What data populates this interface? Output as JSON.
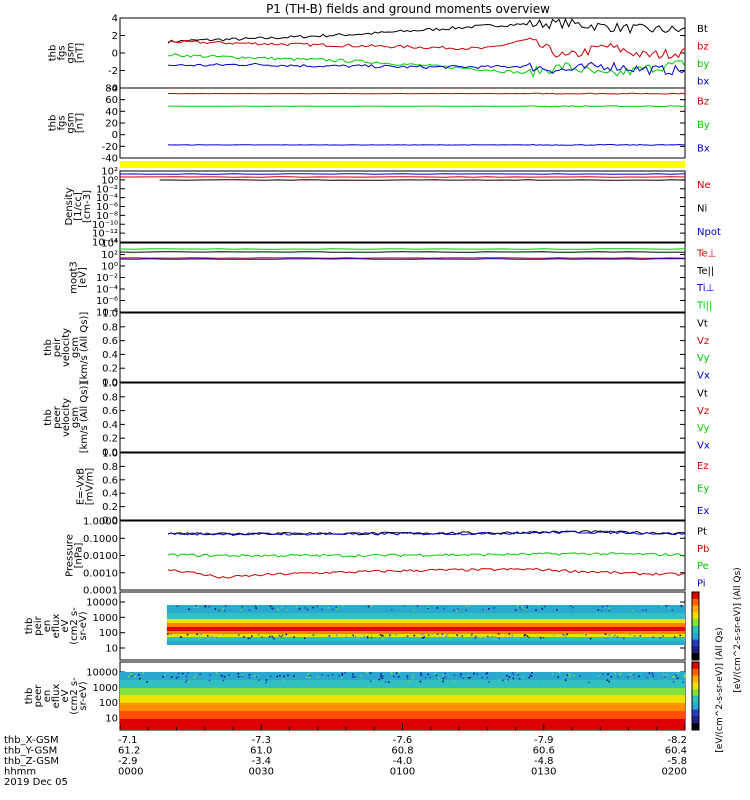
{
  "title": "P1 (TH-B) fields and ground moments overview",
  "chart_data": [
    {
      "type": "line",
      "ylabel": [
        "thb",
        "fgs",
        "gsm",
        "[nT]"
      ],
      "ylim": [
        -4,
        4
      ],
      "yticks": [
        4,
        2,
        0,
        -2,
        -4
      ],
      "series": [
        {
          "name": "Bt",
          "color": "#000000",
          "values": [
            1.3,
            1.5,
            1.6,
            1.8,
            2.0,
            2.2,
            2.5,
            2.8,
            3.1,
            3.3,
            3.4,
            3.0,
            2.7,
            2.6
          ]
        },
        {
          "name": "bz",
          "color": "#cc0000",
          "values": [
            1.3,
            1.2,
            1.1,
            1.0,
            0.9,
            0.8,
            0.7,
            0.6,
            0.5,
            1.5,
            -0.5,
            0.8,
            -0.3,
            0.1
          ]
        },
        {
          "name": "by",
          "color": "#00cc00",
          "values": [
            -0.2,
            -0.4,
            -0.5,
            -0.7,
            -0.8,
            -1.0,
            -1.3,
            -1.6,
            -1.9,
            -2.3,
            -1.5,
            -2.6,
            -1.8,
            -1.2
          ]
        },
        {
          "name": "bx",
          "color": "#0000cc",
          "values": [
            -1.4,
            -1.4,
            -1.3,
            -1.4,
            -1.5,
            -1.5,
            -1.6,
            -1.6,
            -1.6,
            -1.5,
            -2.0,
            -1.4,
            -1.9,
            -2.0
          ]
        }
      ]
    },
    {
      "type": "line",
      "ylabel": [
        "thb",
        "fgs",
        "gsm",
        "[nT]"
      ],
      "ylim": [
        -50,
        100
      ],
      "yticks": [
        80,
        60,
        40,
        20,
        0,
        -20,
        -40
      ],
      "series": [
        {
          "name": "Bz",
          "color": "#cc0000",
          "values": [
            88,
            88,
            88,
            88,
            88,
            88,
            88
          ]
        },
        {
          "name": "By",
          "color": "#00cc00",
          "values": [
            61,
            61,
            61,
            61,
            61,
            61,
            61
          ]
        },
        {
          "name": "Bx",
          "color": "#0000cc",
          "values": [
            -22,
            -22,
            -22,
            -22,
            -22,
            -22,
            -22
          ]
        }
      ]
    },
    {
      "type": "line",
      "ylabel": [
        "Density",
        "[1/cc]",
        "[cm-3]"
      ],
      "scale": "log",
      "yticks": [
        "10²",
        "10⁰",
        "10⁻²",
        "10⁻⁴",
        "10⁻⁶",
        "10⁻⁸",
        "10⁻¹⁰",
        "10⁻¹²",
        "10⁻¹⁴"
      ],
      "series": [
        {
          "name": "Ne",
          "color": "#cc0000"
        },
        {
          "name": "Ni",
          "color": "#000000"
        },
        {
          "name": "Npot",
          "color": "#0000cc"
        }
      ]
    },
    {
      "type": "line",
      "ylabel": [
        "moqt3",
        "[eV]"
      ],
      "scale": "log",
      "yticks": [
        "10⁴",
        "10²",
        "10⁰",
        "10⁻²",
        "10⁻⁴",
        "10⁻⁶",
        "10⁻⁸"
      ],
      "series": [
        {
          "name": "Te⊥",
          "color": "#cc0000"
        },
        {
          "name": "Te||",
          "color": "#000000"
        },
        {
          "name": "Ti⊥",
          "color": "#0000cc"
        },
        {
          "name": "Ti||",
          "color": "#00cc00"
        }
      ]
    },
    {
      "type": "line",
      "ylabel": [
        "thb",
        "peir",
        "velocity",
        "gsm",
        "[km/s (All Qs)]"
      ],
      "ylim": [
        0,
        1
      ],
      "yticks": [
        "1.0",
        "0.8",
        "0.6",
        "0.4",
        "0.2",
        "0.0"
      ],
      "series": [
        {
          "name": "Vt",
          "color": "#000000"
        },
        {
          "name": "Vz",
          "color": "#cc0000"
        },
        {
          "name": "Vy",
          "color": "#00cc00"
        },
        {
          "name": "Vx",
          "color": "#0000cc"
        }
      ]
    },
    {
      "type": "line",
      "ylabel": [
        "thb",
        "peer",
        "velocity",
        "gsm",
        "[km/s (All Qs)]"
      ],
      "ylim": [
        0,
        1
      ],
      "yticks": [
        "1.0",
        "0.8",
        "0.6",
        "0.4",
        "0.2",
        "0.0"
      ],
      "series": [
        {
          "name": "Vt",
          "color": "#000000"
        },
        {
          "name": "Vz",
          "color": "#cc0000"
        },
        {
          "name": "Vy",
          "color": "#00cc00"
        },
        {
          "name": "Vx",
          "color": "#0000cc"
        }
      ]
    },
    {
      "type": "line",
      "ylabel": [
        "E=-VxB",
        "[mV/m]"
      ],
      "ylim": [
        0,
        1
      ],
      "yticks": [
        "1.0",
        "0.8",
        "0.6",
        "0.4",
        "0.2",
        "0.0"
      ],
      "series": [
        {
          "name": "Ez",
          "color": "#cc0000"
        },
        {
          "name": "Ey",
          "color": "#00cc00"
        },
        {
          "name": "Ex",
          "color": "#0000cc"
        }
      ]
    },
    {
      "type": "line",
      "ylabel": [
        "Pressure",
        "[nPa]"
      ],
      "scale": "log",
      "yticks": [
        "1.0000",
        "0.1000",
        "0.0100",
        "0.0010",
        "0.0001"
      ],
      "series": [
        {
          "name": "Pt",
          "color": "#000000",
          "values": [
            0.19,
            0.19,
            0.19,
            0.19,
            0.19,
            0.2,
            0.2,
            0.22,
            0.24,
            0.22,
            0.19
          ]
        },
        {
          "name": "Pb",
          "color": "#cc0000",
          "values": [
            0.0015,
            0.0005,
            0.0008,
            0.001,
            0.0012,
            0.0014,
            0.0015,
            0.0016,
            0.0012,
            0.0009,
            0.0008
          ]
        },
        {
          "name": "Pe",
          "color": "#00cc00",
          "values": [
            0.011,
            0.01,
            0.01,
            0.01,
            0.01,
            0.011,
            0.011,
            0.012,
            0.013,
            0.012,
            0.011
          ]
        },
        {
          "name": "Pi",
          "color": "#0000cc",
          "values": [
            0.18,
            0.18,
            0.18,
            0.18,
            0.18,
            0.19,
            0.19,
            0.21,
            0.23,
            0.21,
            0.18
          ]
        }
      ]
    },
    {
      "type": "heatmap",
      "ylabel": [
        "thb",
        "peir",
        "en",
        "eflux",
        "eV",
        "(cm2 s-",
        "sr-eV)"
      ],
      "yticks": [
        "10000",
        "1000",
        "100",
        "10"
      ],
      "colorbar_ticks": [
        "10⁸",
        "10⁶",
        "10⁴",
        "10²"
      ]
    },
    {
      "type": "heatmap",
      "ylabel": [
        "thb",
        "peer",
        "en",
        "eflux",
        "eV",
        "(cm2 s-",
        "sr-eV)"
      ],
      "yticks": [
        "10000",
        "1000",
        "100",
        "10"
      ],
      "colorbar_ticks": [
        "10⁸",
        "10⁶",
        "10⁴",
        "10²"
      ]
    }
  ],
  "colorbar_label": "[eV/(cm^2-s-sr-eV)] (All Qs)",
  "colorbar_label2": "[eV/(cm^2-s-sr-eV)] (All Qs)",
  "ephemeris": {
    "labels": [
      "thb_X-GSM",
      "thb_Y-GSM",
      "thb_Z-GSM",
      "hhmm",
      "2019 Dec 05"
    ],
    "columns": [
      [
        "-7.1",
        "61.2",
        "-2.9",
        "0000"
      ],
      [
        "-7.3",
        "61.0",
        "-3.4",
        "0030"
      ],
      [
        "-7.6",
        "60.8",
        "-4.0",
        "0100"
      ],
      [
        "-7.9",
        "60.6",
        "-4.8",
        "0130"
      ],
      [
        "-8.2",
        "60.4",
        "-5.8",
        "0200"
      ]
    ]
  }
}
